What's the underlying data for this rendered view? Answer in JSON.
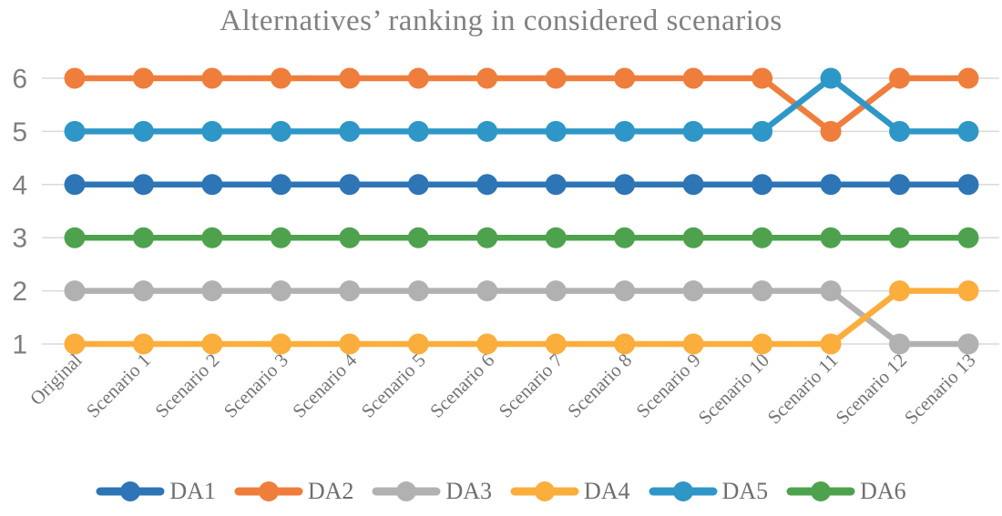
{
  "figure": {
    "title": "Alternatives’ ranking in considered scenarios"
  },
  "chart_data": {
    "type": "line",
    "title": "Alternatives’ ranking in considered scenarios",
    "categories": [
      "Original",
      "Scenario 1",
      "Scenario 2",
      "Scenario 3",
      "Scenario 4",
      "Scenario 5",
      "Scenario 6",
      "Scenario 7",
      "Scenario 8",
      "Scenario 9",
      "Scenario 10",
      "Scenario 11",
      "Scenario 12",
      "Scenario 13"
    ],
    "yticks": [
      1,
      2,
      3,
      4,
      5,
      6
    ],
    "ylim": [
      1,
      6
    ],
    "grid": true,
    "legend_position": "bottom",
    "series": [
      {
        "name": "DA1",
        "color": "#2E75B6",
        "values": [
          4,
          4,
          4,
          4,
          4,
          4,
          4,
          4,
          4,
          4,
          4,
          4,
          4,
          4
        ]
      },
      {
        "name": "DA2",
        "color": "#EF7D3C",
        "values": [
          6,
          6,
          6,
          6,
          6,
          6,
          6,
          6,
          6,
          6,
          6,
          5,
          6,
          6
        ]
      },
      {
        "name": "DA3",
        "color": "#B1B1B1",
        "values": [
          2,
          2,
          2,
          2,
          2,
          2,
          2,
          2,
          2,
          2,
          2,
          2,
          1,
          1
        ]
      },
      {
        "name": "DA4",
        "color": "#FBAE3C",
        "values": [
          1,
          1,
          1,
          1,
          1,
          1,
          1,
          1,
          1,
          1,
          1,
          1,
          2,
          2
        ]
      },
      {
        "name": "DA5",
        "color": "#2E97C8",
        "values": [
          5,
          5,
          5,
          5,
          5,
          5,
          5,
          5,
          5,
          5,
          5,
          6,
          5,
          5
        ]
      },
      {
        "name": "DA6",
        "color": "#4EA24E",
        "values": [
          3,
          3,
          3,
          3,
          3,
          3,
          3,
          3,
          3,
          3,
          3,
          3,
          3,
          3
        ]
      }
    ],
    "styles": {
      "title_color": "#808080",
      "tick_label_color": "#7F7F7F",
      "category_label_color": "#737373",
      "legend_text_color": "#6E6E6E",
      "gridline_color": "#D9D9D9",
      "background": "#FFFFFF"
    }
  }
}
